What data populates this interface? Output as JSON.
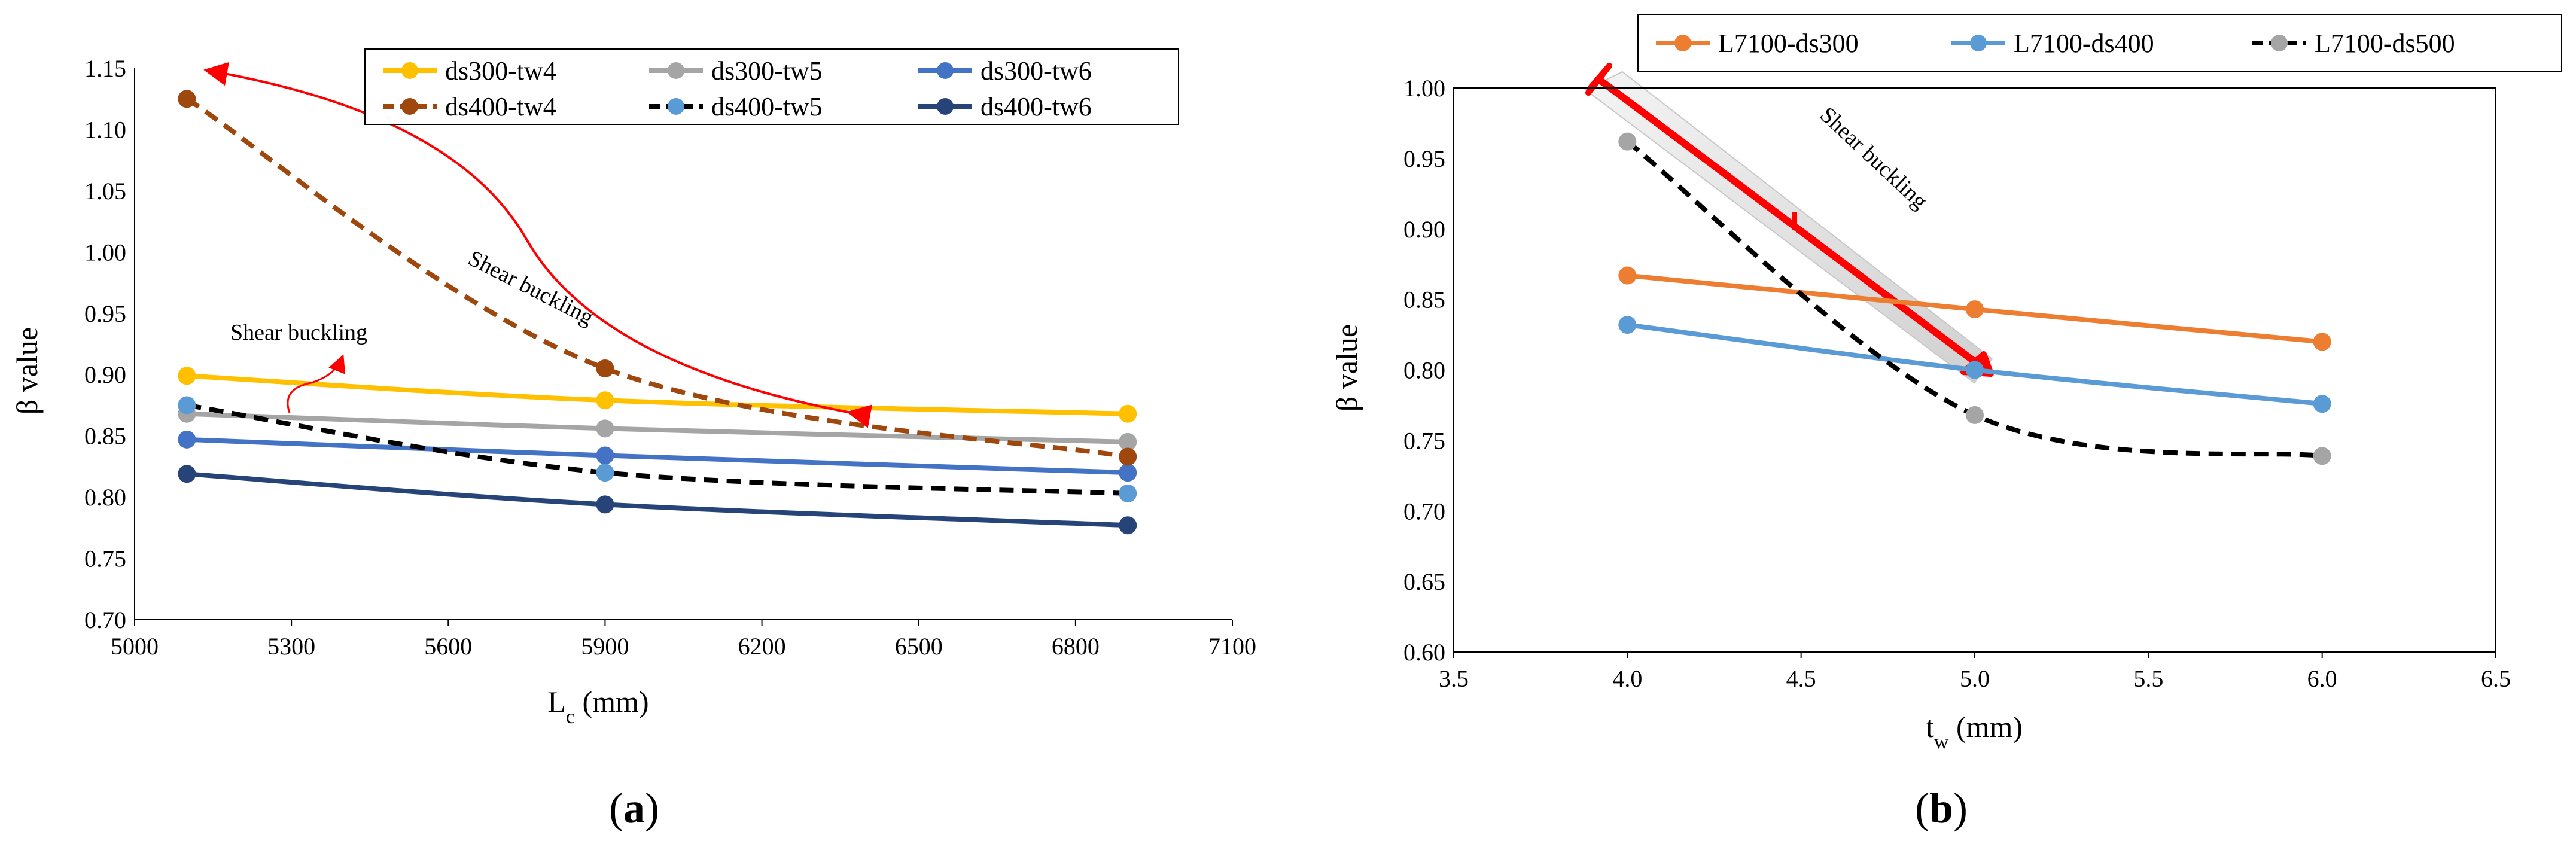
{
  "chart_data": [
    {
      "panel": "a",
      "type": "line",
      "xlabel": "Lc (mm)",
      "xlabel_main": "L",
      "xlabel_sub": "c",
      "xlabel_unit": " (mm)",
      "ylabel": "β value",
      "xlim": [
        5000,
        7100
      ],
      "ylim": [
        0.7,
        1.15
      ],
      "xticks": [
        5000,
        5300,
        5600,
        5900,
        6200,
        6500,
        6800,
        7100
      ],
      "yticks": [
        "0.70",
        "0.75",
        "0.80",
        "0.85",
        "0.90",
        "0.95",
        "1.00",
        "1.05",
        "1.10",
        "1.15"
      ],
      "grid": false,
      "legend": "top-right",
      "series": [
        {
          "name": "ds300-tw4",
          "color": "#FFC000",
          "dash": false,
          "x": [
            5100,
            5900,
            6900
          ],
          "values": [
            0.899,
            0.879,
            0.868
          ]
        },
        {
          "name": "ds300-tw5",
          "color": "#A5A5A5",
          "dash": false,
          "x": [
            5100,
            5900,
            6900
          ],
          "values": [
            0.868,
            0.856,
            0.845
          ]
        },
        {
          "name": "ds300-tw6",
          "color": "#4472C4",
          "dash": false,
          "x": [
            5100,
            5900,
            6900
          ],
          "values": [
            0.847,
            0.834,
            0.82
          ]
        },
        {
          "name": "ds400-tw4",
          "color": "#9E480E",
          "dash": true,
          "x": [
            5100,
            5900,
            6900
          ],
          "values": [
            1.125,
            0.905,
            0.833
          ]
        },
        {
          "name": "ds400-tw5",
          "color": "#5B9BD5",
          "line_color": "#000000",
          "dash": true,
          "x": [
            5100,
            5900,
            6900
          ],
          "values": [
            0.875,
            0.82,
            0.803
          ]
        },
        {
          "name": "ds400-tw6",
          "color": "#264478",
          "dash": false,
          "x": [
            5100,
            5900,
            6900
          ],
          "values": [
            0.819,
            0.794,
            0.777
          ]
        }
      ],
      "annotations": [
        "Shear buckling",
        "Shear buckling"
      ]
    },
    {
      "panel": "b",
      "type": "line",
      "xlabel": "tw (mm)",
      "xlabel_main": "t",
      "xlabel_sub": "w",
      "xlabel_unit": " (mm)",
      "ylabel": "β value",
      "xlim": [
        3.5,
        6.5
      ],
      "ylim": [
        0.6,
        1.0
      ],
      "xticks": [
        "3.5",
        "4.0",
        "4.5",
        "5.0",
        "5.5",
        "6.0",
        "6.5"
      ],
      "yticks": [
        "0.60",
        "0.65",
        "0.70",
        "0.75",
        "0.80",
        "0.85",
        "0.90",
        "0.95",
        "1.00"
      ],
      "grid": false,
      "legend": "top",
      "series": [
        {
          "name": "L7100-ds300",
          "color": "#ED7D31",
          "dash": false,
          "x": [
            4.0,
            5.0,
            6.0
          ],
          "values": [
            0.867,
            0.843,
            0.82
          ]
        },
        {
          "name": "L7100-ds400",
          "color": "#5B9BD5",
          "dash": false,
          "x": [
            4.0,
            5.0,
            6.0
          ],
          "values": [
            0.832,
            0.8,
            0.776
          ]
        },
        {
          "name": "L7100-ds500",
          "color": "#A5A5A5",
          "line_color": "#000000",
          "dash": true,
          "x": [
            4.0,
            5.0,
            6.0
          ],
          "values": [
            0.962,
            0.768,
            0.739
          ]
        }
      ],
      "annotations": [
        "Shear buckling"
      ]
    }
  ],
  "panels": {
    "a": {
      "open": "(",
      "letter": "a",
      "close": ")"
    },
    "b": {
      "open": "(",
      "letter": "b",
      "close": ")"
    }
  }
}
